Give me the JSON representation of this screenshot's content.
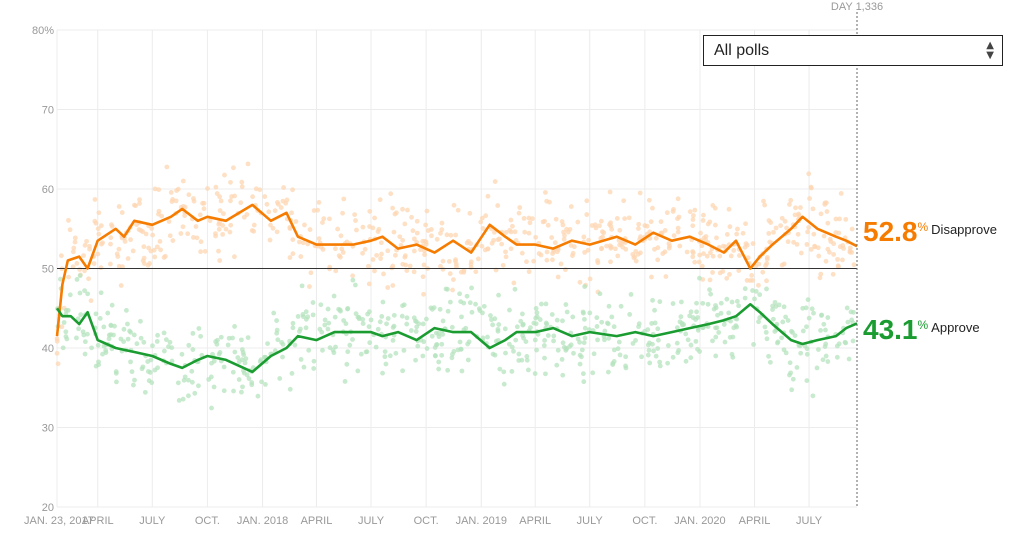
{
  "selector": {
    "value": "All polls"
  },
  "day_marker": {
    "label": "DAY 1,336"
  },
  "current": {
    "disapprove": {
      "value": "52.8",
      "unit": "%",
      "label": "Disapprove"
    },
    "approve": {
      "value": "43.1",
      "unit": "%",
      "label": "Approve"
    }
  },
  "colors": {
    "disapprove": "#f57c00",
    "approve": "#1a9c31",
    "disapprove_light": "#fdd5b1",
    "approve_light": "#b5e3be"
  },
  "chart_data": {
    "type": "line",
    "x_axis": {
      "start": "2017-01-23",
      "end": "2020-09-19",
      "ticks": [
        {
          "date": "2017-01-23",
          "label": "JAN. 23, 2017"
        },
        {
          "date": "2017-04-01",
          "label": "APRIL"
        },
        {
          "date": "2017-07-01",
          "label": "JULY"
        },
        {
          "date": "2017-10-01",
          "label": "OCT."
        },
        {
          "date": "2018-01-01",
          "label": "JAN. 2018"
        },
        {
          "date": "2018-04-01",
          "label": "APRIL"
        },
        {
          "date": "2018-07-01",
          "label": "JULY"
        },
        {
          "date": "2018-10-01",
          "label": "OCT."
        },
        {
          "date": "2019-01-01",
          "label": "JAN. 2019"
        },
        {
          "date": "2019-04-01",
          "label": "APRIL"
        },
        {
          "date": "2019-07-01",
          "label": "JULY"
        },
        {
          "date": "2019-10-01",
          "label": "OCT."
        },
        {
          "date": "2020-01-01",
          "label": "JAN. 2020"
        },
        {
          "date": "2020-04-01",
          "label": "APRIL"
        },
        {
          "date": "2020-07-01",
          "label": "JULY"
        }
      ]
    },
    "y_axis": {
      "min": 20,
      "max": 80,
      "ticks": [
        20,
        30,
        40,
        50,
        60,
        70,
        80
      ],
      "top_label": "80%"
    },
    "reference_line": 50,
    "grid": true,
    "series": [
      {
        "name": "Disapprove",
        "points": [
          [
            "2017-01-23",
            41.5
          ],
          [
            "2017-02-01",
            48.0
          ],
          [
            "2017-02-10",
            51.0
          ],
          [
            "2017-03-01",
            51.5
          ],
          [
            "2017-03-15",
            50.0
          ],
          [
            "2017-04-01",
            53.5
          ],
          [
            "2017-05-01",
            55.0
          ],
          [
            "2017-05-15",
            54.0
          ],
          [
            "2017-06-01",
            56.0
          ],
          [
            "2017-07-01",
            55.5
          ],
          [
            "2017-08-01",
            56.5
          ],
          [
            "2017-08-20",
            57.5
          ],
          [
            "2017-09-15",
            56.0
          ],
          [
            "2017-10-01",
            56.5
          ],
          [
            "2017-11-01",
            56.0
          ],
          [
            "2017-12-15",
            58.0
          ],
          [
            "2018-01-15",
            56.0
          ],
          [
            "2018-02-10",
            57.0
          ],
          [
            "2018-03-01",
            54.0
          ],
          [
            "2018-04-01",
            53.0
          ],
          [
            "2018-05-01",
            53.0
          ],
          [
            "2018-06-01",
            53.0
          ],
          [
            "2018-07-01",
            53.5
          ],
          [
            "2018-07-20",
            54.0
          ],
          [
            "2018-08-15",
            52.5
          ],
          [
            "2018-09-15",
            53.0
          ],
          [
            "2018-10-15",
            52.0
          ],
          [
            "2018-11-15",
            53.5
          ],
          [
            "2018-12-15",
            52.0
          ],
          [
            "2019-01-15",
            55.5
          ],
          [
            "2019-02-10",
            54.0
          ],
          [
            "2019-03-01",
            53.0
          ],
          [
            "2019-04-01",
            53.0
          ],
          [
            "2019-05-01",
            52.5
          ],
          [
            "2019-06-01",
            53.5
          ],
          [
            "2019-07-01",
            53.0
          ],
          [
            "2019-08-15",
            54.0
          ],
          [
            "2019-09-15",
            53.0
          ],
          [
            "2019-10-15",
            54.5
          ],
          [
            "2019-11-15",
            53.5
          ],
          [
            "2019-12-15",
            54.0
          ],
          [
            "2020-01-15",
            53.0
          ],
          [
            "2020-02-10",
            52.0
          ],
          [
            "2020-03-01",
            53.5
          ],
          [
            "2020-03-25",
            50.0
          ],
          [
            "2020-04-10",
            51.5
          ],
          [
            "2020-05-01",
            53.0
          ],
          [
            "2020-06-01",
            55.0
          ],
          [
            "2020-06-20",
            56.5
          ],
          [
            "2020-07-15",
            55.0
          ],
          [
            "2020-08-15",
            54.0
          ],
          [
            "2020-09-01",
            53.5
          ],
          [
            "2020-09-19",
            52.8
          ]
        ]
      },
      {
        "name": "Approve",
        "points": [
          [
            "2017-01-23",
            45.0
          ],
          [
            "2017-02-01",
            44.0
          ],
          [
            "2017-02-15",
            44.0
          ],
          [
            "2017-03-01",
            43.0
          ],
          [
            "2017-03-15",
            44.5
          ],
          [
            "2017-04-01",
            41.0
          ],
          [
            "2017-05-01",
            40.0
          ],
          [
            "2017-06-01",
            39.5
          ],
          [
            "2017-07-01",
            39.0
          ],
          [
            "2017-08-01",
            38.0
          ],
          [
            "2017-08-20",
            37.5
          ],
          [
            "2017-09-15",
            38.5
          ],
          [
            "2017-10-01",
            39.0
          ],
          [
            "2017-11-01",
            38.5
          ],
          [
            "2017-12-15",
            37.0
          ],
          [
            "2018-01-15",
            39.0
          ],
          [
            "2018-02-10",
            40.0
          ],
          [
            "2018-03-01",
            41.5
          ],
          [
            "2018-04-01",
            41.0
          ],
          [
            "2018-05-01",
            42.0
          ],
          [
            "2018-06-01",
            42.0
          ],
          [
            "2018-07-01",
            42.0
          ],
          [
            "2018-07-20",
            41.5
          ],
          [
            "2018-08-15",
            42.0
          ],
          [
            "2018-09-15",
            41.0
          ],
          [
            "2018-10-15",
            42.5
          ],
          [
            "2018-11-15",
            42.0
          ],
          [
            "2018-12-15",
            42.0
          ],
          [
            "2019-01-15",
            40.0
          ],
          [
            "2019-02-10",
            41.0
          ],
          [
            "2019-03-01",
            42.0
          ],
          [
            "2019-04-01",
            42.0
          ],
          [
            "2019-05-01",
            42.5
          ],
          [
            "2019-06-01",
            41.5
          ],
          [
            "2019-07-01",
            42.0
          ],
          [
            "2019-08-15",
            41.5
          ],
          [
            "2019-09-15",
            42.0
          ],
          [
            "2019-10-15",
            41.5
          ],
          [
            "2019-11-15",
            42.0
          ],
          [
            "2019-12-15",
            42.5
          ],
          [
            "2020-01-15",
            43.0
          ],
          [
            "2020-02-10",
            43.5
          ],
          [
            "2020-03-01",
            44.0
          ],
          [
            "2020-03-25",
            45.5
          ],
          [
            "2020-04-10",
            44.5
          ],
          [
            "2020-05-01",
            43.0
          ],
          [
            "2020-06-01",
            41.0
          ],
          [
            "2020-06-20",
            40.5
          ],
          [
            "2020-07-15",
            41.0
          ],
          [
            "2020-08-15",
            41.5
          ],
          [
            "2020-09-01",
            42.5
          ],
          [
            "2020-09-19",
            43.1
          ]
        ]
      }
    ]
  }
}
